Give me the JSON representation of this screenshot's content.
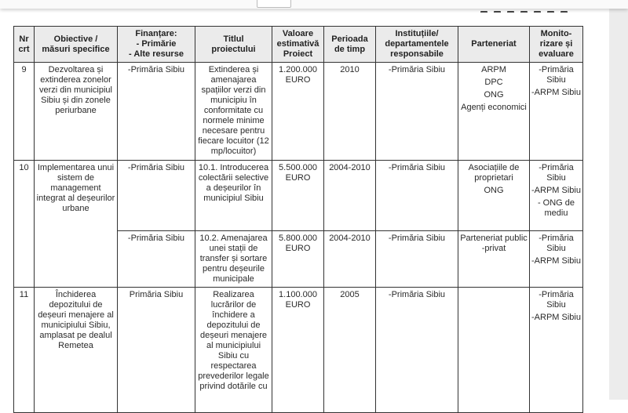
{
  "headers": [
    "Nr\ncrt",
    "Obiective /\nmăsuri specifice",
    "Finanțare:\n- Primărie\n- Alte resurse",
    "Titlul\nproiectului",
    "Valoare\nestimativă\nProiect",
    "Perioada\nde timp",
    "Instituțiile/\ndepartamentele\nresponsabile",
    "Parteneriat",
    "Monito-\nrizare și\nevaluare"
  ],
  "rows": [
    {
      "nr": "9",
      "objective": "Dezvoltarea și extinderea zonelor verzi din municipiul Sibiu și din zonele periurbane",
      "subrows": [
        {
          "funding": "-Primăria Sibiu",
          "title": "Extinderea și amenajarea spațiilor verzi din municipiu în conformitate cu normele minime necesare pentru fiecare locuitor (12 mp/locuitor)",
          "value": "1.200.000 EURO",
          "period": "2010",
          "institutions": "-Primăria Sibiu",
          "partners": [
            "ARPM",
            "DPC",
            "ONG",
            "Agenți economici"
          ],
          "monitoring": [
            "-Primăria Sibiu",
            "-ARPM Sibiu"
          ]
        }
      ]
    },
    {
      "nr": "10",
      "objective": "Implementarea unui sistem de management integrat al deșeurilor urbane",
      "subrows": [
        {
          "funding": "-Primăria Sibiu",
          "title": "10.1. Introducerea colectării selective a deșeurilor în municipiul Sibiu",
          "value": "5.500.000 EURO",
          "period": "2004-2010",
          "institutions": "-Primăria Sibiu",
          "partners": [
            "Asociațiile de proprietari",
            "ONG"
          ],
          "monitoring": [
            "-Primăria Sibiu",
            "-ARPM Sibiu",
            "- ONG de mediu"
          ]
        },
        {
          "funding": "-Primăria Sibiu",
          "title": "10.2. Amenajarea unei stații de transfer și sortare pentru deșeurile municipale",
          "value": "5.800.000 EURO",
          "period": "2004-2010",
          "institutions": "-Primăria Sibiu",
          "partners": [
            "Parteneriat public -privat"
          ],
          "monitoring": [
            "-Primăria Sibiu",
            "-ARPM Sibiu"
          ]
        }
      ]
    },
    {
      "nr": "11",
      "objective": "Închiderea depozitului de deșeuri menajere al municipiului Sibiu, amplasat pe dealul Remetea",
      "subrows": [
        {
          "funding": "Primăria Sibiu",
          "title": "Realizarea lucrărilor de închidere a depozitului de deșeuri menajere al municipiului Sibiu cu respectarea prevederilor legale privind dotările cu",
          "value": "1.100.000 EURO",
          "period": "2005",
          "institutions": "-Primăria Sibiu",
          "partners": [],
          "monitoring": [
            "-Primăria Sibiu",
            "-ARPM Sibiu"
          ]
        }
      ]
    }
  ]
}
